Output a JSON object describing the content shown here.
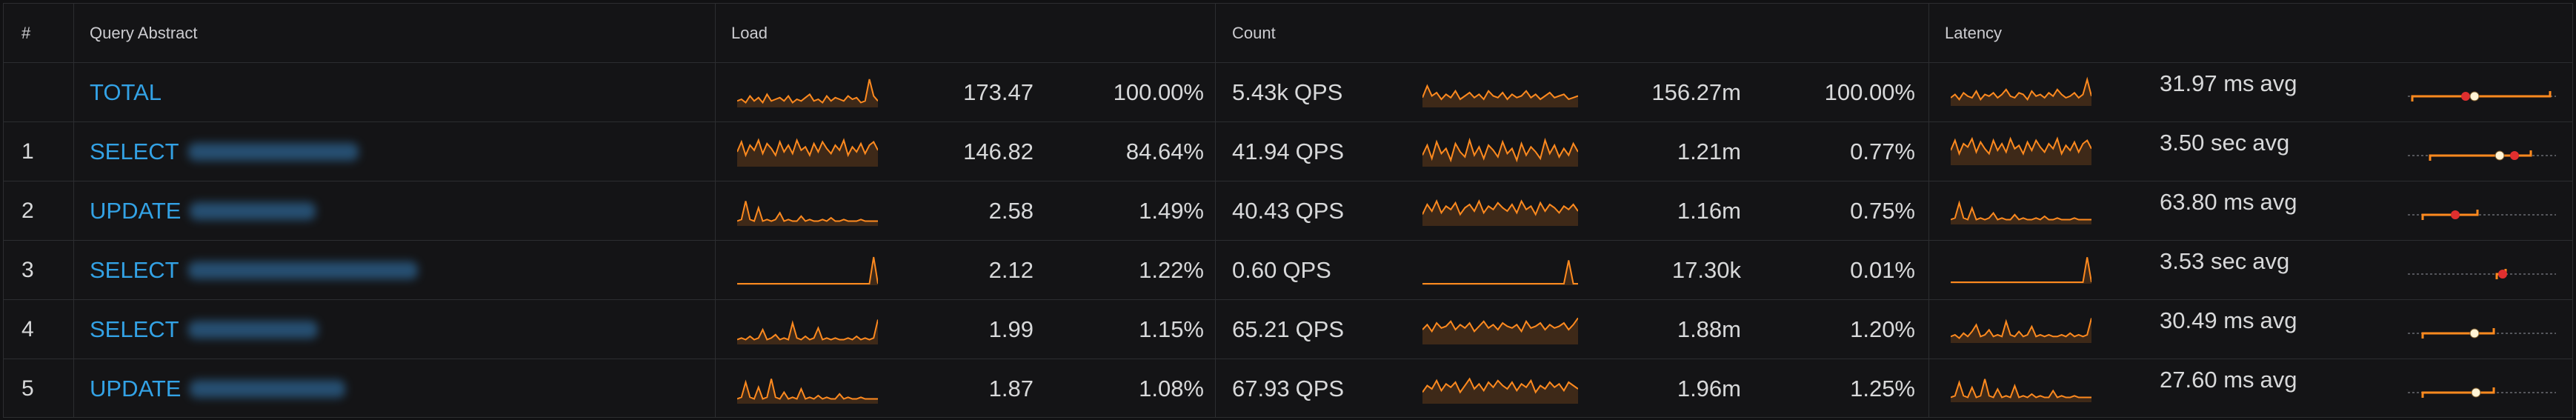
{
  "colors": {
    "accent": "#ff8a1f",
    "link": "#33a2e5",
    "marker_red": "#e02f2f",
    "marker_white": "#fff4d6"
  },
  "header": {
    "index": "#",
    "query": "Query Abstract",
    "load": "Load",
    "count": "Count",
    "latency": "Latency"
  },
  "rows": [
    {
      "index": "",
      "query": "TOTAL",
      "load": "173.47",
      "load_pct": "100.00%",
      "qps": "5.43k",
      "qps_unit": "QPS",
      "count": "156.27m",
      "count_pct": "100.00%",
      "latency": "31.97 ms",
      "latency_unit": "avg",
      "load_spark": [
        3,
        4,
        2,
        6,
        3,
        5,
        2,
        7,
        3,
        4,
        5,
        3,
        6,
        2,
        4,
        3,
        5,
        7,
        3,
        4,
        2,
        6,
        3,
        5,
        4,
        3,
        6,
        4,
        5,
        2,
        3,
        16,
        6,
        3
      ],
      "count_spark": [
        5,
        12,
        6,
        8,
        4,
        7,
        5,
        9,
        4,
        6,
        8,
        5,
        7,
        4,
        9,
        6,
        5,
        8,
        4,
        7,
        5,
        6,
        9,
        5,
        7,
        4,
        6,
        8,
        5,
        6,
        7,
        4,
        5,
        6
      ],
      "latency_spark": [
        4,
        6,
        3,
        7,
        5,
        4,
        8,
        3,
        6,
        5,
        7,
        4,
        6,
        9,
        5,
        4,
        7,
        6,
        3,
        8,
        5,
        6,
        4,
        7,
        5,
        9,
        6,
        4,
        5,
        7,
        4,
        6,
        15,
        5
      ],
      "lat_marker_red": 0.39,
      "lat_marker_white": 0.45,
      "lat_range": [
        0.03,
        0.96
      ]
    },
    {
      "index": "1",
      "query": "SELECT",
      "load": "146.82",
      "load_pct": "84.64%",
      "qps": "41.94",
      "qps_unit": "QPS",
      "count": "1.21m",
      "count_pct": "0.77%",
      "latency": "3.50 sec",
      "latency_unit": "avg",
      "load_spark": [
        8,
        14,
        6,
        12,
        9,
        15,
        7,
        13,
        10,
        6,
        14,
        8,
        12,
        7,
        15,
        9,
        11,
        6,
        13,
        8,
        14,
        10,
        7,
        12,
        9,
        15,
        6,
        11,
        8,
        13,
        7,
        12,
        14,
        9
      ],
      "count_spark": [
        6,
        12,
        4,
        14,
        7,
        10,
        3,
        13,
        8,
        5,
        15,
        6,
        11,
        4,
        12,
        9,
        5,
        14,
        7,
        10,
        3,
        13,
        6,
        11,
        8,
        4,
        15,
        7,
        12,
        5,
        10,
        6,
        13,
        8
      ],
      "latency_spark": [
        8,
        14,
        6,
        12,
        10,
        15,
        7,
        13,
        9,
        6,
        14,
        8,
        12,
        7,
        15,
        9,
        11,
        6,
        13,
        8,
        14,
        10,
        7,
        12,
        9,
        15,
        6,
        11,
        8,
        13,
        7,
        12,
        14,
        9
      ],
      "lat_marker_red": 0.72,
      "lat_marker_white": 0.62,
      "lat_range": [
        0.15,
        0.83
      ]
    },
    {
      "index": "2",
      "query": "UPDATE",
      "load": "2.58",
      "load_pct": "1.49%",
      "qps": "40.43",
      "qps_unit": "QPS",
      "count": "1.16m",
      "count_pct": "0.75%",
      "latency": "63.80 ms",
      "latency_unit": "avg",
      "load_spark": [
        2,
        3,
        14,
        3,
        2,
        10,
        2,
        3,
        2,
        3,
        7,
        2,
        3,
        2,
        2,
        5,
        2,
        3,
        2,
        2,
        3,
        2,
        4,
        2,
        2,
        3,
        2,
        2,
        2,
        3,
        2,
        2,
        2,
        2
      ],
      "count_spark": [
        6,
        12,
        8,
        14,
        7,
        11,
        9,
        13,
        6,
        10,
        12,
        8,
        14,
        7,
        11,
        9,
        13,
        10,
        8,
        12,
        7,
        14,
        9,
        11,
        6,
        13,
        8,
        12,
        10,
        7,
        11,
        9,
        12,
        8
      ],
      "latency_spark": [
        2,
        3,
        12,
        3,
        2,
        9,
        2,
        3,
        2,
        3,
        6,
        2,
        3,
        2,
        2,
        5,
        2,
        3,
        2,
        2,
        3,
        2,
        4,
        2,
        2,
        3,
        2,
        2,
        2,
        3,
        2,
        2,
        2,
        2
      ],
      "lat_marker_red": 0.32,
      "lat_marker_white": null,
      "lat_range": [
        0.1,
        0.47
      ]
    },
    {
      "index": "3",
      "query": "SELECT",
      "load": "2.12",
      "load_pct": "1.22%",
      "qps": "0.60",
      "qps_unit": "QPS",
      "count": "17.30k",
      "count_pct": "0.01%",
      "latency": "3.53 sec",
      "latency_unit": "avg",
      "load_spark": [
        0,
        0,
        0,
        0,
        0,
        0,
        0,
        0,
        0,
        0,
        0,
        0,
        0,
        0,
        0,
        0,
        0,
        0,
        0,
        0,
        0,
        0,
        0,
        0,
        0,
        0,
        0,
        0,
        0,
        0,
        0,
        0,
        16,
        0
      ],
      "count_spark": [
        0,
        0,
        0,
        0,
        0,
        0,
        0,
        0,
        0,
        0,
        0,
        0,
        0,
        0,
        0,
        0,
        0,
        0,
        0,
        0,
        0,
        0,
        0,
        0,
        0,
        0,
        0,
        0,
        0,
        0,
        0,
        14,
        0,
        0
      ],
      "latency_spark": [
        0,
        0,
        0,
        0,
        0,
        0,
        0,
        0,
        0,
        0,
        0,
        0,
        0,
        0,
        0,
        0,
        0,
        0,
        0,
        0,
        0,
        0,
        0,
        0,
        0,
        0,
        0,
        0,
        0,
        0,
        0,
        0,
        15,
        0
      ],
      "lat_marker_red": 0.64,
      "lat_marker_white": null,
      "lat_range": [
        0.6,
        0.66
      ]
    },
    {
      "index": "4",
      "query": "SELECT",
      "load": "1.99",
      "load_pct": "1.15%",
      "qps": "65.21",
      "qps_unit": "QPS",
      "count": "1.88m",
      "count_pct": "1.20%",
      "latency": "30.49 ms",
      "latency_unit": "avg",
      "load_spark": [
        2,
        3,
        2,
        4,
        2,
        3,
        8,
        2,
        3,
        5,
        2,
        3,
        2,
        12,
        3,
        2,
        4,
        2,
        3,
        9,
        2,
        3,
        2,
        3,
        2,
        2,
        3,
        2,
        4,
        2,
        3,
        2,
        3,
        14
      ],
      "count_spark": [
        8,
        11,
        7,
        12,
        9,
        10,
        13,
        8,
        11,
        9,
        12,
        7,
        10,
        13,
        9,
        11,
        8,
        12,
        10,
        9,
        11,
        7,
        13,
        9,
        10,
        12,
        8,
        11,
        9,
        10,
        12,
        8,
        11,
        15
      ],
      "latency_spark": [
        3,
        4,
        2,
        5,
        3,
        6,
        10,
        3,
        4,
        7,
        3,
        4,
        3,
        12,
        4,
        3,
        6,
        3,
        4,
        9,
        3,
        4,
        3,
        4,
        3,
        3,
        4,
        3,
        5,
        3,
        4,
        3,
        4,
        14
      ],
      "lat_marker_red": 0.45,
      "lat_marker_white": 0.45,
      "lat_range": [
        0.1,
        0.58
      ]
    },
    {
      "index": "5",
      "query": "UPDATE",
      "load": "1.87",
      "load_pct": "1.08%",
      "qps": "67.93",
      "qps_unit": "QPS",
      "count": "1.96m",
      "count_pct": "1.25%",
      "latency": "27.60 ms",
      "latency_unit": "avg",
      "load_spark": [
        2,
        3,
        12,
        3,
        2,
        9,
        2,
        3,
        14,
        3,
        2,
        6,
        2,
        3,
        2,
        8,
        2,
        3,
        2,
        4,
        2,
        3,
        2,
        2,
        5,
        2,
        3,
        2,
        2,
        3,
        2,
        2,
        2,
        2
      ],
      "count_spark": [
        6,
        10,
        8,
        13,
        7,
        11,
        9,
        12,
        6,
        10,
        14,
        8,
        11,
        7,
        12,
        9,
        13,
        10,
        8,
        12,
        7,
        11,
        9,
        13,
        6,
        10,
        8,
        12,
        9,
        11,
        7,
        12,
        10,
        8
      ],
      "latency_spark": [
        2,
        3,
        11,
        3,
        2,
        8,
        2,
        3,
        13,
        3,
        2,
        7,
        2,
        3,
        2,
        9,
        2,
        3,
        2,
        4,
        2,
        3,
        2,
        2,
        6,
        2,
        3,
        2,
        2,
        3,
        2,
        2,
        2,
        2
      ],
      "lat_marker_red": 0.46,
      "lat_marker_white": 0.46,
      "lat_range": [
        0.1,
        0.58
      ]
    }
  ]
}
